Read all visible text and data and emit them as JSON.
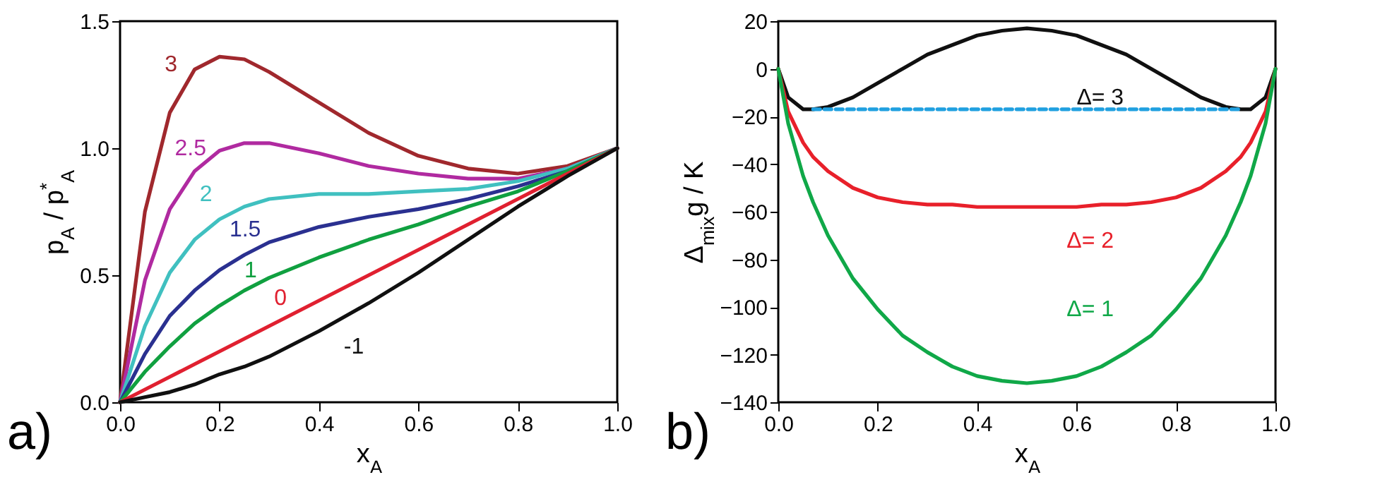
{
  "chart_data": [
    {
      "type": "line",
      "xlabel": "x$_{A}$",
      "ylabel": "p$_{A}$ / p$^{*}$$_{A}$",
      "annotations": [
        "a)"
      ],
      "xlim": [
        0,
        1
      ],
      "ylim": [
        0,
        1.5
      ],
      "xticks": [
        {
          "value": 0,
          "label": "0.0"
        },
        {
          "value": 0.2,
          "label": "0.2"
        },
        {
          "value": 0.4,
          "label": "0.4"
        },
        {
          "value": 0.6,
          "label": "0.6"
        },
        {
          "value": 0.8,
          "label": "0.8"
        },
        {
          "value": 1,
          "label": "1.0"
        }
      ],
      "yticks": [
        {
          "value": 0,
          "label": "0.0"
        },
        {
          "value": 0.5,
          "label": "0.5"
        },
        {
          "value": 1,
          "label": "1.0"
        },
        {
          "value": 1.5,
          "label": "1.5"
        }
      ],
      "x": [
        0,
        0.05,
        0.1,
        0.15,
        0.2,
        0.25,
        0.3,
        0.4,
        0.5,
        0.6,
        0.7,
        0.8,
        0.9,
        1
      ],
      "series": [
        {
          "name": "3",
          "color": "#a0282d",
          "values": [
            0,
            0.75,
            1.14,
            1.31,
            1.36,
            1.35,
            1.3,
            1.18,
            1.06,
            0.97,
            0.92,
            0.9,
            0.93,
            1
          ]
        },
        {
          "name": "2.5",
          "color": "#b02aa0",
          "values": [
            0,
            0.48,
            0.76,
            0.91,
            0.99,
            1.02,
            1.02,
            0.98,
            0.93,
            0.9,
            0.88,
            0.88,
            0.92,
            1
          ]
        },
        {
          "name": "2",
          "color": "#40c0c0",
          "values": [
            0,
            0.3,
            0.51,
            0.64,
            0.72,
            0.77,
            0.8,
            0.82,
            0.82,
            0.83,
            0.84,
            0.87,
            0.92,
            1
          ]
        },
        {
          "name": "1.5",
          "color": "#2a3090",
          "values": [
            0,
            0.19,
            0.34,
            0.44,
            0.52,
            0.58,
            0.63,
            0.69,
            0.73,
            0.76,
            0.8,
            0.85,
            0.91,
            1
          ]
        },
        {
          "name": "1",
          "color": "#10a040",
          "values": [
            0,
            0.12,
            0.22,
            0.31,
            0.38,
            0.44,
            0.49,
            0.57,
            0.64,
            0.7,
            0.77,
            0.83,
            0.91,
            1
          ]
        },
        {
          "name": "0",
          "color": "#e02030",
          "values": [
            0,
            0.05,
            0.1,
            0.15,
            0.2,
            0.25,
            0.3,
            0.4,
            0.5,
            0.6,
            0.7,
            0.8,
            0.9,
            1
          ]
        },
        {
          "name": "-1",
          "color": "#101010",
          "values": [
            0,
            0.02,
            0.04,
            0.07,
            0.11,
            0.14,
            0.18,
            0.28,
            0.39,
            0.51,
            0.64,
            0.77,
            0.89,
            1
          ]
        }
      ]
    },
    {
      "type": "line",
      "xlabel": "x$_{A}$",
      "ylabel": "Δ$_{mix}$g / K",
      "annotations": [
        "b)"
      ],
      "xlim": [
        0,
        1
      ],
      "ylim": [
        -140,
        20
      ],
      "xticks": [
        {
          "value": 0,
          "label": "0.0"
        },
        {
          "value": 0.2,
          "label": "0.2"
        },
        {
          "value": 0.4,
          "label": "0.4"
        },
        {
          "value": 0.6,
          "label": "0.6"
        },
        {
          "value": 0.8,
          "label": "0.8"
        },
        {
          "value": 1,
          "label": "1.0"
        }
      ],
      "yticks": [
        -140,
        -120,
        -100,
        -80,
        -60,
        -40,
        -20,
        0,
        20
      ],
      "x": [
        0,
        0.02,
        0.05,
        0.07,
        0.1,
        0.15,
        0.2,
        0.25,
        0.3,
        0.35,
        0.4,
        0.45,
        0.5,
        0.55,
        0.6,
        0.65,
        0.7,
        0.75,
        0.8,
        0.85,
        0.9,
        0.93,
        0.95,
        0.98,
        1
      ],
      "series": [
        {
          "name": "Δ= 3",
          "color": "#101010",
          "values": [
            0,
            -12,
            -17,
            -17,
            -16,
            -12,
            -6,
            0,
            6,
            10,
            14,
            16,
            17,
            16,
            14,
            10,
            6,
            0,
            -6,
            -12,
            -16,
            -17,
            -17,
            -12,
            0
          ]
        },
        {
          "name": "Δ= 2",
          "color": "#e8202a",
          "values": [
            0,
            -18,
            -31,
            -37,
            -43,
            -50,
            -54,
            -56,
            -57,
            -57,
            -58,
            -58,
            -58,
            -58,
            -58,
            -57,
            -57,
            -56,
            -54,
            -50,
            -43,
            -37,
            -31,
            -18,
            0
          ]
        },
        {
          "name": "Δ= 1",
          "color": "#10a848",
          "values": [
            0,
            -23,
            -45,
            -56,
            -70,
            -88,
            -101,
            -112,
            -119,
            -125,
            -129,
            -131,
            -132,
            -131,
            -129,
            -125,
            -119,
            -112,
            -101,
            -88,
            -70,
            -56,
            -45,
            -23,
            0
          ]
        },
        {
          "type": "line",
          "color": "#20a0e0",
          "line_style": "dashed",
          "x": [
            0.07,
            0.93
          ],
          "values": [
            -17,
            -17
          ]
        }
      ]
    }
  ]
}
